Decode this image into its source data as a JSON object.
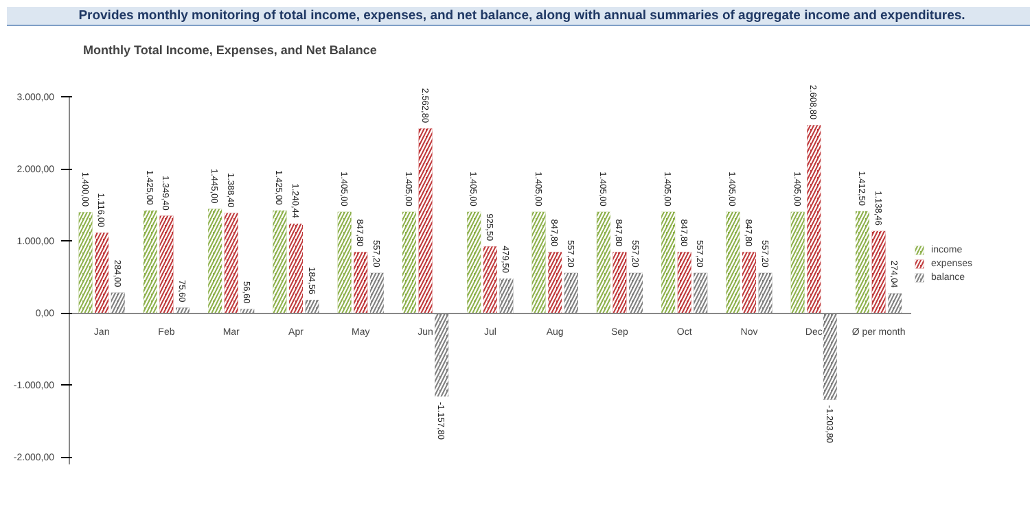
{
  "chart_data": {
    "type": "bar",
    "title": "Monthly Total Income, Expenses, and Net Balance",
    "subtitle": "Provides monthly monitoring of total income, expenses, and net balance, along with annual summaries of aggregate income and expenditures.",
    "categories": [
      "Jan",
      "Feb",
      "Mar",
      "Apr",
      "May",
      "Jun",
      "Jul",
      "Aug",
      "Sep",
      "Oct",
      "Nov",
      "Dec",
      "Ø per month"
    ],
    "series": [
      {
        "name": "income",
        "color": "#8db04a",
        "values": [
          1400,
          1425,
          1445,
          1425,
          1405,
          1405,
          1405,
          1405,
          1405,
          1405,
          1405,
          1405,
          1412.5
        ],
        "value_labels": [
          "1.400,00",
          "1.425,00",
          "1.445,00",
          "1.425,00",
          "1.405,00",
          "1.405,00",
          "1.405,00",
          "1.405,00",
          "1.405,00",
          "1.405,00",
          "1.405,00",
          "1.405,00",
          "1.412,50"
        ]
      },
      {
        "name": "expenses",
        "color": "#c0393b",
        "values": [
          1116,
          1349.4,
          1388.4,
          1240.44,
          847.8,
          2562.8,
          925.5,
          847.8,
          847.8,
          847.8,
          847.8,
          2608.8,
          1138.46
        ],
        "value_labels": [
          "1.116,00",
          "1.349,40",
          "1.388,40",
          "1.240,44",
          "847,80",
          "2.562,80",
          "925,50",
          "847,80",
          "847,80",
          "847,80",
          "847,80",
          "2.608,80",
          "1.138,46"
        ]
      },
      {
        "name": "balance",
        "color": "#7f7f7f",
        "values": [
          284,
          75.6,
          56.6,
          184.56,
          557.2,
          -1157.8,
          479.5,
          557.2,
          557.2,
          557.2,
          557.2,
          -1203.8,
          274.04
        ],
        "value_labels": [
          "284,00",
          "75,60",
          "56,60",
          "184,56",
          "557,20",
          "-1.157,80",
          "479,50",
          "557,20",
          "557,20",
          "557,20",
          "557,20",
          "-1.203,80",
          "274,04"
        ]
      }
    ],
    "ylim": [
      -2100,
      3000
    ],
    "yticks": [
      {
        "value": -2000,
        "label": "-2.000,00"
      },
      {
        "value": -1000,
        "label": "-1.000,00"
      },
      {
        "value": 0,
        "label": "0,00"
      },
      {
        "value": 1000,
        "label": "1.000,00"
      },
      {
        "value": 2000,
        "label": "2.000,00"
      },
      {
        "value": 3000,
        "label": "3.000,00"
      }
    ],
    "grid": false,
    "legend": "right"
  }
}
